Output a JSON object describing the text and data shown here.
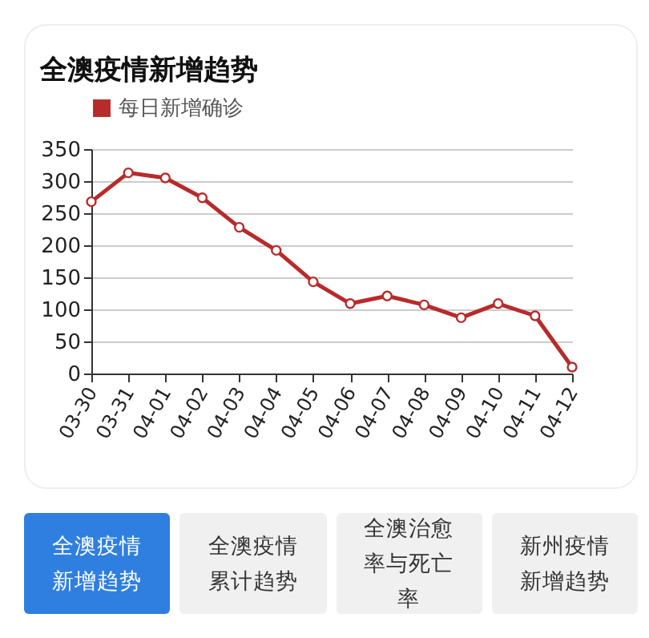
{
  "chart_data": {
    "type": "line",
    "title": "全澳疫情新增趋势",
    "categories": [
      "03-30",
      "03-31",
      "04-01",
      "04-02",
      "04-03",
      "04-04",
      "04-05",
      "04-06",
      "04-07",
      "04-08",
      "04-09",
      "04-10",
      "04-11",
      "04-12"
    ],
    "series": [
      {
        "name": "每日新增确诊",
        "color": "#b82b2b",
        "values": [
          268,
          313,
          305,
          274,
          228,
          192,
          143,
          109,
          121,
          107,
          87,
          109,
          90,
          10
        ]
      }
    ],
    "ylim": [
      0,
      350
    ],
    "yticks": [
      0,
      50,
      100,
      150,
      200,
      250,
      300,
      350
    ],
    "grid": "y",
    "legend": "top left",
    "marker": "circle",
    "line_style": "solid",
    "annotations": [
      "全澳疫情新增趋势",
      "全澳疫情累计趋势",
      "全澳治愈率与死亡率",
      "新州疫情新增趋势"
    ]
  }
}
